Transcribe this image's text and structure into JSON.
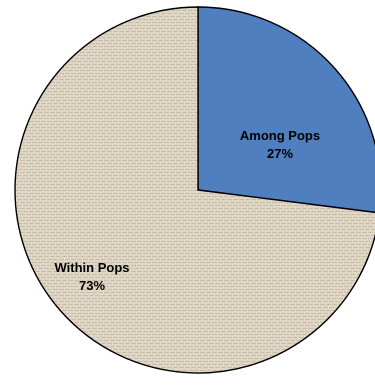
{
  "chart_data": {
    "type": "pie",
    "title": "",
    "slices": [
      {
        "label": "Among Pops",
        "value": 27,
        "value_label": "27%",
        "color": "#4f7fbe"
      },
      {
        "label": "Within Pops",
        "value": 73,
        "value_label": "73%",
        "color": "#ddd3c2"
      }
    ],
    "start_angle_deg": 0,
    "direction": "clockwise",
    "legend": "none",
    "texture": "burlap"
  }
}
